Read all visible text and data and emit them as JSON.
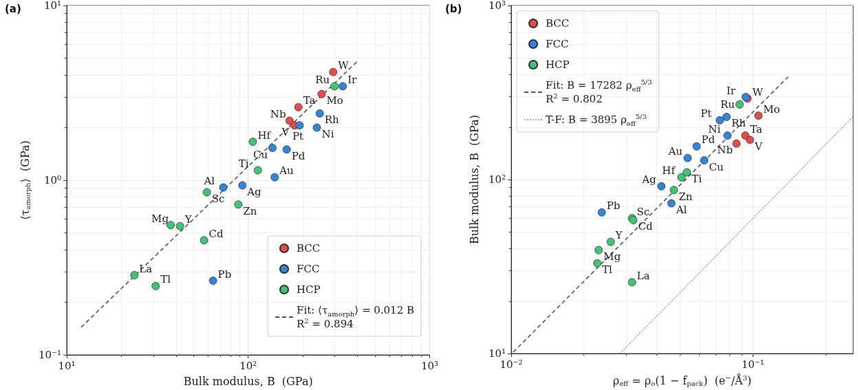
{
  "chart_data": [
    {
      "type": "scatter",
      "title": "(a)",
      "xlabel": "Bulk modulus, B  (GPa)",
      "ylabel": "⟨τ$_{amorph}$⟩  (GPa)",
      "log": "xy",
      "xlim": [
        10,
        1000
      ],
      "ylim": [
        0.1,
        10
      ],
      "xticks": [
        {
          "value": 10,
          "label": "10¹"
        },
        {
          "value": 100,
          "label": "10²"
        },
        {
          "value": 1000,
          "label": "10³"
        }
      ],
      "yticks": [
        {
          "value": 0.1,
          "label": "10⁻¹"
        },
        {
          "value": 1,
          "label": "10⁰"
        },
        {
          "value": 10,
          "label": "10¹"
        }
      ],
      "grid": true,
      "legend": "bottom right",
      "marker": "circle",
      "series": [
        {
          "name": "BCC",
          "color": "#e84a45",
          "x": [
            294,
            254,
            189,
            169,
            180
          ],
          "values": [
            4.16,
            3.11,
            2.62,
            2.19,
            2.06
          ]
        },
        {
          "name": "FCC",
          "color": "#2f86e0",
          "x": [
            332,
            248,
            192,
            239,
            136,
            163,
            140,
            92.9,
            72.9,
            64.0
          ],
          "values": [
            3.45,
            2.41,
            2.06,
            2.0,
            1.53,
            1.5,
            1.04,
            0.934,
            0.909,
            0.266
          ]
        },
        {
          "name": "HCP",
          "color": "#3cc872",
          "x": [
            299,
            106,
            113,
            59.2,
            88.2,
            37.4,
            42.1,
            57.1,
            23.6,
            30.9
          ],
          "values": [
            3.45,
            1.66,
            1.14,
            0.853,
            0.726,
            0.554,
            0.546,
            0.453,
            0.286,
            0.248
          ]
        },
        {
          "type": "line",
          "name": "Fit: ⟨τ$_{amorph}$⟩ = 0.012 B\nR$^{2}$ = 0.894",
          "color": "#555555",
          "line_style": "dashed",
          "marker": "none",
          "x": [
            12,
            400
          ],
          "values": [
            0.144,
            4.8
          ]
        }
      ],
      "annotations": [
        {
          "text": "W",
          "x": 294,
          "y": 4.16
        },
        {
          "text": "Mo",
          "x": 254,
          "y": 3.11
        },
        {
          "text": "Ta",
          "x": 189,
          "y": 2.62
        },
        {
          "text": "Nb",
          "x": 169,
          "y": 2.19
        },
        {
          "text": "V",
          "x": 180,
          "y": 2.06
        },
        {
          "text": "Ir",
          "x": 332,
          "y": 3.45
        },
        {
          "text": "Rh",
          "x": 248,
          "y": 2.41
        },
        {
          "text": "Pt",
          "x": 192,
          "y": 2.06
        },
        {
          "text": "Ni",
          "x": 239,
          "y": 2.0
        },
        {
          "text": "Cu",
          "x": 136,
          "y": 1.53
        },
        {
          "text": "Pd",
          "x": 163,
          "y": 1.5
        },
        {
          "text": "Au",
          "x": 140,
          "y": 1.04
        },
        {
          "text": "Ag",
          "x": 92.9,
          "y": 0.934
        },
        {
          "text": "Al",
          "x": 72.9,
          "y": 0.909
        },
        {
          "text": "Pb",
          "x": 64.0,
          "y": 0.266
        },
        {
          "text": "Ru",
          "x": 299,
          "y": 3.45
        },
        {
          "text": "Hf",
          "x": 106,
          "y": 1.66
        },
        {
          "text": "Ti",
          "x": 113,
          "y": 1.14
        },
        {
          "text": "Sc",
          "x": 59.2,
          "y": 0.853
        },
        {
          "text": "Zn",
          "x": 88.2,
          "y": 0.726
        },
        {
          "text": "Mg",
          "x": 37.4,
          "y": 0.554
        },
        {
          "text": "Y",
          "x": 42.1,
          "y": 0.546
        },
        {
          "text": "Cd",
          "x": 57.1,
          "y": 0.453
        },
        {
          "text": "La",
          "x": 23.6,
          "y": 0.286
        },
        {
          "text": "Tl",
          "x": 30.9,
          "y": 0.248
        }
      ]
    },
    {
      "type": "scatter",
      "title": "(b)",
      "xlabel": "ρ$_{eff}$ = ρ$_{o}$(1 − f$_{pack}$)  (e$^{−}$/Å$^{3}$)",
      "ylabel": "Bulk modulus, B  (GPa)",
      "log": "xy",
      "xlim": [
        0.01,
        0.26
      ],
      "ylim": [
        10,
        1000
      ],
      "xticks": [
        {
          "value": 0.01,
          "label": "10⁻²"
        },
        {
          "value": 0.1,
          "label": "10⁻¹"
        }
      ],
      "yticks": [
        {
          "value": 10,
          "label": "10¹"
        },
        {
          "value": 100,
          "label": "10²"
        },
        {
          "value": 1000,
          "label": "10³"
        }
      ],
      "grid": true,
      "legend": "top left",
      "marker": "circle",
      "series": [
        {
          "name": "BCC",
          "color": "#e84a45",
          "x": [
            0.095,
            0.1054,
            0.093,
            0.0972,
            0.0855
          ],
          "values": [
            292,
            233,
            179,
            169,
            161
          ]
        },
        {
          "name": "FCC",
          "color": "#2f86e0",
          "x": [
            0.0934,
            0.0778,
            0.073,
            0.0785,
            0.0585,
            0.0537,
            0.0629,
            0.0418,
            0.046,
            0.0237
          ],
          "values": [
            298,
            229,
            219,
            179,
            155,
            133,
            129,
            91.5,
            73.0,
            64.7
          ]
        },
        {
          "name": "HCP",
          "color": "#3cc872",
          "x": [
            0.0881,
            0.0533,
            0.0506,
            0.0471,
            0.0316,
            0.032,
            0.0258,
            0.023,
            0.0227,
            0.0316
          ],
          "values": [
            270,
            110,
            103,
            87.1,
            60.0,
            58.5,
            43.8,
            39.3,
            33.0,
            25.7
          ]
        },
        {
          "type": "line",
          "name": "Fit: B = 17282 ρ$_{eff}$$^{5/3}$\nR$^{2}$ = 0.802",
          "color": "#555555",
          "line_style": "dashed",
          "marker": "none",
          "x": [
            0.0102,
            0.14
          ],
          "values": [
            10.2,
            390
          ]
        },
        {
          "type": "line",
          "name": "T-F: B = 3895 ρ$_{eff}$$^{5/3}$",
          "color": "#888888",
          "line_style": "dotted",
          "marker": "none",
          "x": [
            0.0282,
            0.26
          ],
          "values": [
            10,
            230
          ]
        }
      ],
      "annotations": [
        {
          "text": "W",
          "x": 0.095,
          "y": 292
        },
        {
          "text": "Mo",
          "x": 0.1054,
          "y": 233
        },
        {
          "text": "Ta",
          "x": 0.093,
          "y": 179
        },
        {
          "text": "V",
          "x": 0.0972,
          "y": 169
        },
        {
          "text": "Nb",
          "x": 0.0855,
          "y": 161
        },
        {
          "text": "Ir",
          "x": 0.0934,
          "y": 298
        },
        {
          "text": "Rh",
          "x": 0.0778,
          "y": 229
        },
        {
          "text": "Pt",
          "x": 0.073,
          "y": 219
        },
        {
          "text": "Ni",
          "x": 0.0785,
          "y": 179
        },
        {
          "text": "Pd",
          "x": 0.0585,
          "y": 155
        },
        {
          "text": "Au",
          "x": 0.0537,
          "y": 133
        },
        {
          "text": "Cu",
          "x": 0.0629,
          "y": 129
        },
        {
          "text": "Ag",
          "x": 0.0418,
          "y": 91.5
        },
        {
          "text": "Al",
          "x": 0.046,
          "y": 73.0
        },
        {
          "text": "Pb",
          "x": 0.0237,
          "y": 64.7
        },
        {
          "text": "Ru",
          "x": 0.0881,
          "y": 270
        },
        {
          "text": "Ti",
          "x": 0.0533,
          "y": 110
        },
        {
          "text": "Hf",
          "x": 0.0506,
          "y": 103
        },
        {
          "text": "Zn",
          "x": 0.0471,
          "y": 87.1
        },
        {
          "text": "Sc",
          "x": 0.0316,
          "y": 60.0
        },
        {
          "text": "Cd",
          "x": 0.032,
          "y": 58.5
        },
        {
          "text": "Y",
          "x": 0.0258,
          "y": 43.8
        },
        {
          "text": "Mg",
          "x": 0.023,
          "y": 39.3
        },
        {
          "text": "Tl",
          "x": 0.0227,
          "y": 33.0
        },
        {
          "text": "La",
          "x": 0.0316,
          "y": 25.7
        }
      ]
    }
  ]
}
